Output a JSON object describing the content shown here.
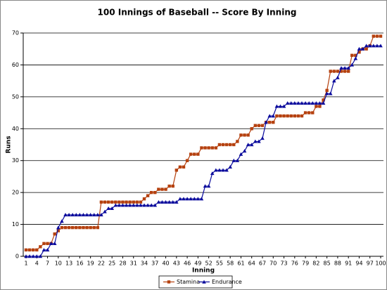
{
  "chart_data": {
    "type": "line",
    "title": "100 Innings of Baseball -- Score By Inning",
    "x_label": "Inning",
    "y_label": "Runs",
    "x": [
      1,
      2,
      3,
      4,
      5,
      6,
      7,
      8,
      9,
      10,
      11,
      12,
      13,
      14,
      15,
      16,
      17,
      18,
      19,
      20,
      21,
      22,
      23,
      24,
      25,
      26,
      27,
      28,
      29,
      30,
      31,
      32,
      33,
      34,
      35,
      36,
      37,
      38,
      39,
      40,
      41,
      42,
      43,
      44,
      45,
      46,
      47,
      48,
      49,
      50,
      51,
      52,
      53,
      54,
      55,
      56,
      57,
      58,
      59,
      60,
      61,
      62,
      63,
      64,
      65,
      66,
      67,
      68,
      69,
      70,
      71,
      72,
      73,
      74,
      75,
      76,
      77,
      78,
      79,
      80,
      81,
      82,
      83,
      84,
      85,
      86,
      87,
      88,
      89,
      90,
      91,
      92,
      93,
      94,
      95,
      96,
      97,
      98,
      99,
      100
    ],
    "xlim": [
      1,
      100
    ],
    "xticks": [
      1,
      4,
      7,
      10,
      13,
      16,
      19,
      22,
      25,
      28,
      31,
      34,
      37,
      40,
      43,
      46,
      49,
      52,
      55,
      58,
      61,
      64,
      67,
      70,
      73,
      76,
      79,
      82,
      85,
      88,
      91,
      94,
      97,
      100
    ],
    "ylim": [
      0,
      70
    ],
    "yticks": [
      0,
      10,
      20,
      30,
      40,
      50,
      60,
      70
    ],
    "grid": true,
    "legend": "bottom",
    "series": [
      {
        "name": "Stamina",
        "color": "#b5410f",
        "marker": "square",
        "values": [
          2,
          2,
          2,
          2,
          3,
          4,
          4,
          4,
          7,
          8,
          9,
          9,
          9,
          9,
          9,
          9,
          9,
          9,
          9,
          9,
          9,
          17,
          17,
          17,
          17,
          17,
          17,
          17,
          17,
          17,
          17,
          17,
          17,
          18,
          19,
          20,
          20,
          21,
          21,
          21,
          22,
          22,
          27,
          28,
          28,
          30,
          32,
          32,
          32,
          34,
          34,
          34,
          34,
          34,
          35,
          35,
          35,
          35,
          35,
          36,
          38,
          38,
          38,
          40,
          41,
          41,
          41,
          42,
          42,
          42,
          44,
          44,
          44,
          44,
          44,
          44,
          44,
          44,
          45,
          45,
          45,
          47,
          47,
          49,
          52,
          58,
          58,
          58,
          58,
          58,
          58,
          63,
          63,
          64,
          65,
          65,
          66,
          69,
          69,
          69
        ]
      },
      {
        "name": "Endurance",
        "color": "#0a0a9c",
        "marker": "triangle",
        "values": [
          0,
          0,
          0,
          0,
          0,
          2,
          2,
          4,
          4,
          9,
          11,
          13,
          13,
          13,
          13,
          13,
          13,
          13,
          13,
          13,
          13,
          13,
          14,
          15,
          15,
          16,
          16,
          16,
          16,
          16,
          16,
          16,
          16,
          16,
          16,
          16,
          16,
          17,
          17,
          17,
          17,
          17,
          17,
          18,
          18,
          18,
          18,
          18,
          18,
          18,
          22,
          22,
          26,
          27,
          27,
          27,
          27,
          28,
          30,
          30,
          32,
          33,
          35,
          35,
          36,
          36,
          37,
          42,
          44,
          44,
          47,
          47,
          47,
          48,
          48,
          48,
          48,
          48,
          48,
          48,
          48,
          48,
          48,
          48,
          51,
          51,
          55,
          56,
          59,
          59,
          59,
          60,
          62,
          65,
          65,
          66,
          66,
          66,
          66,
          66
        ]
      }
    ]
  }
}
